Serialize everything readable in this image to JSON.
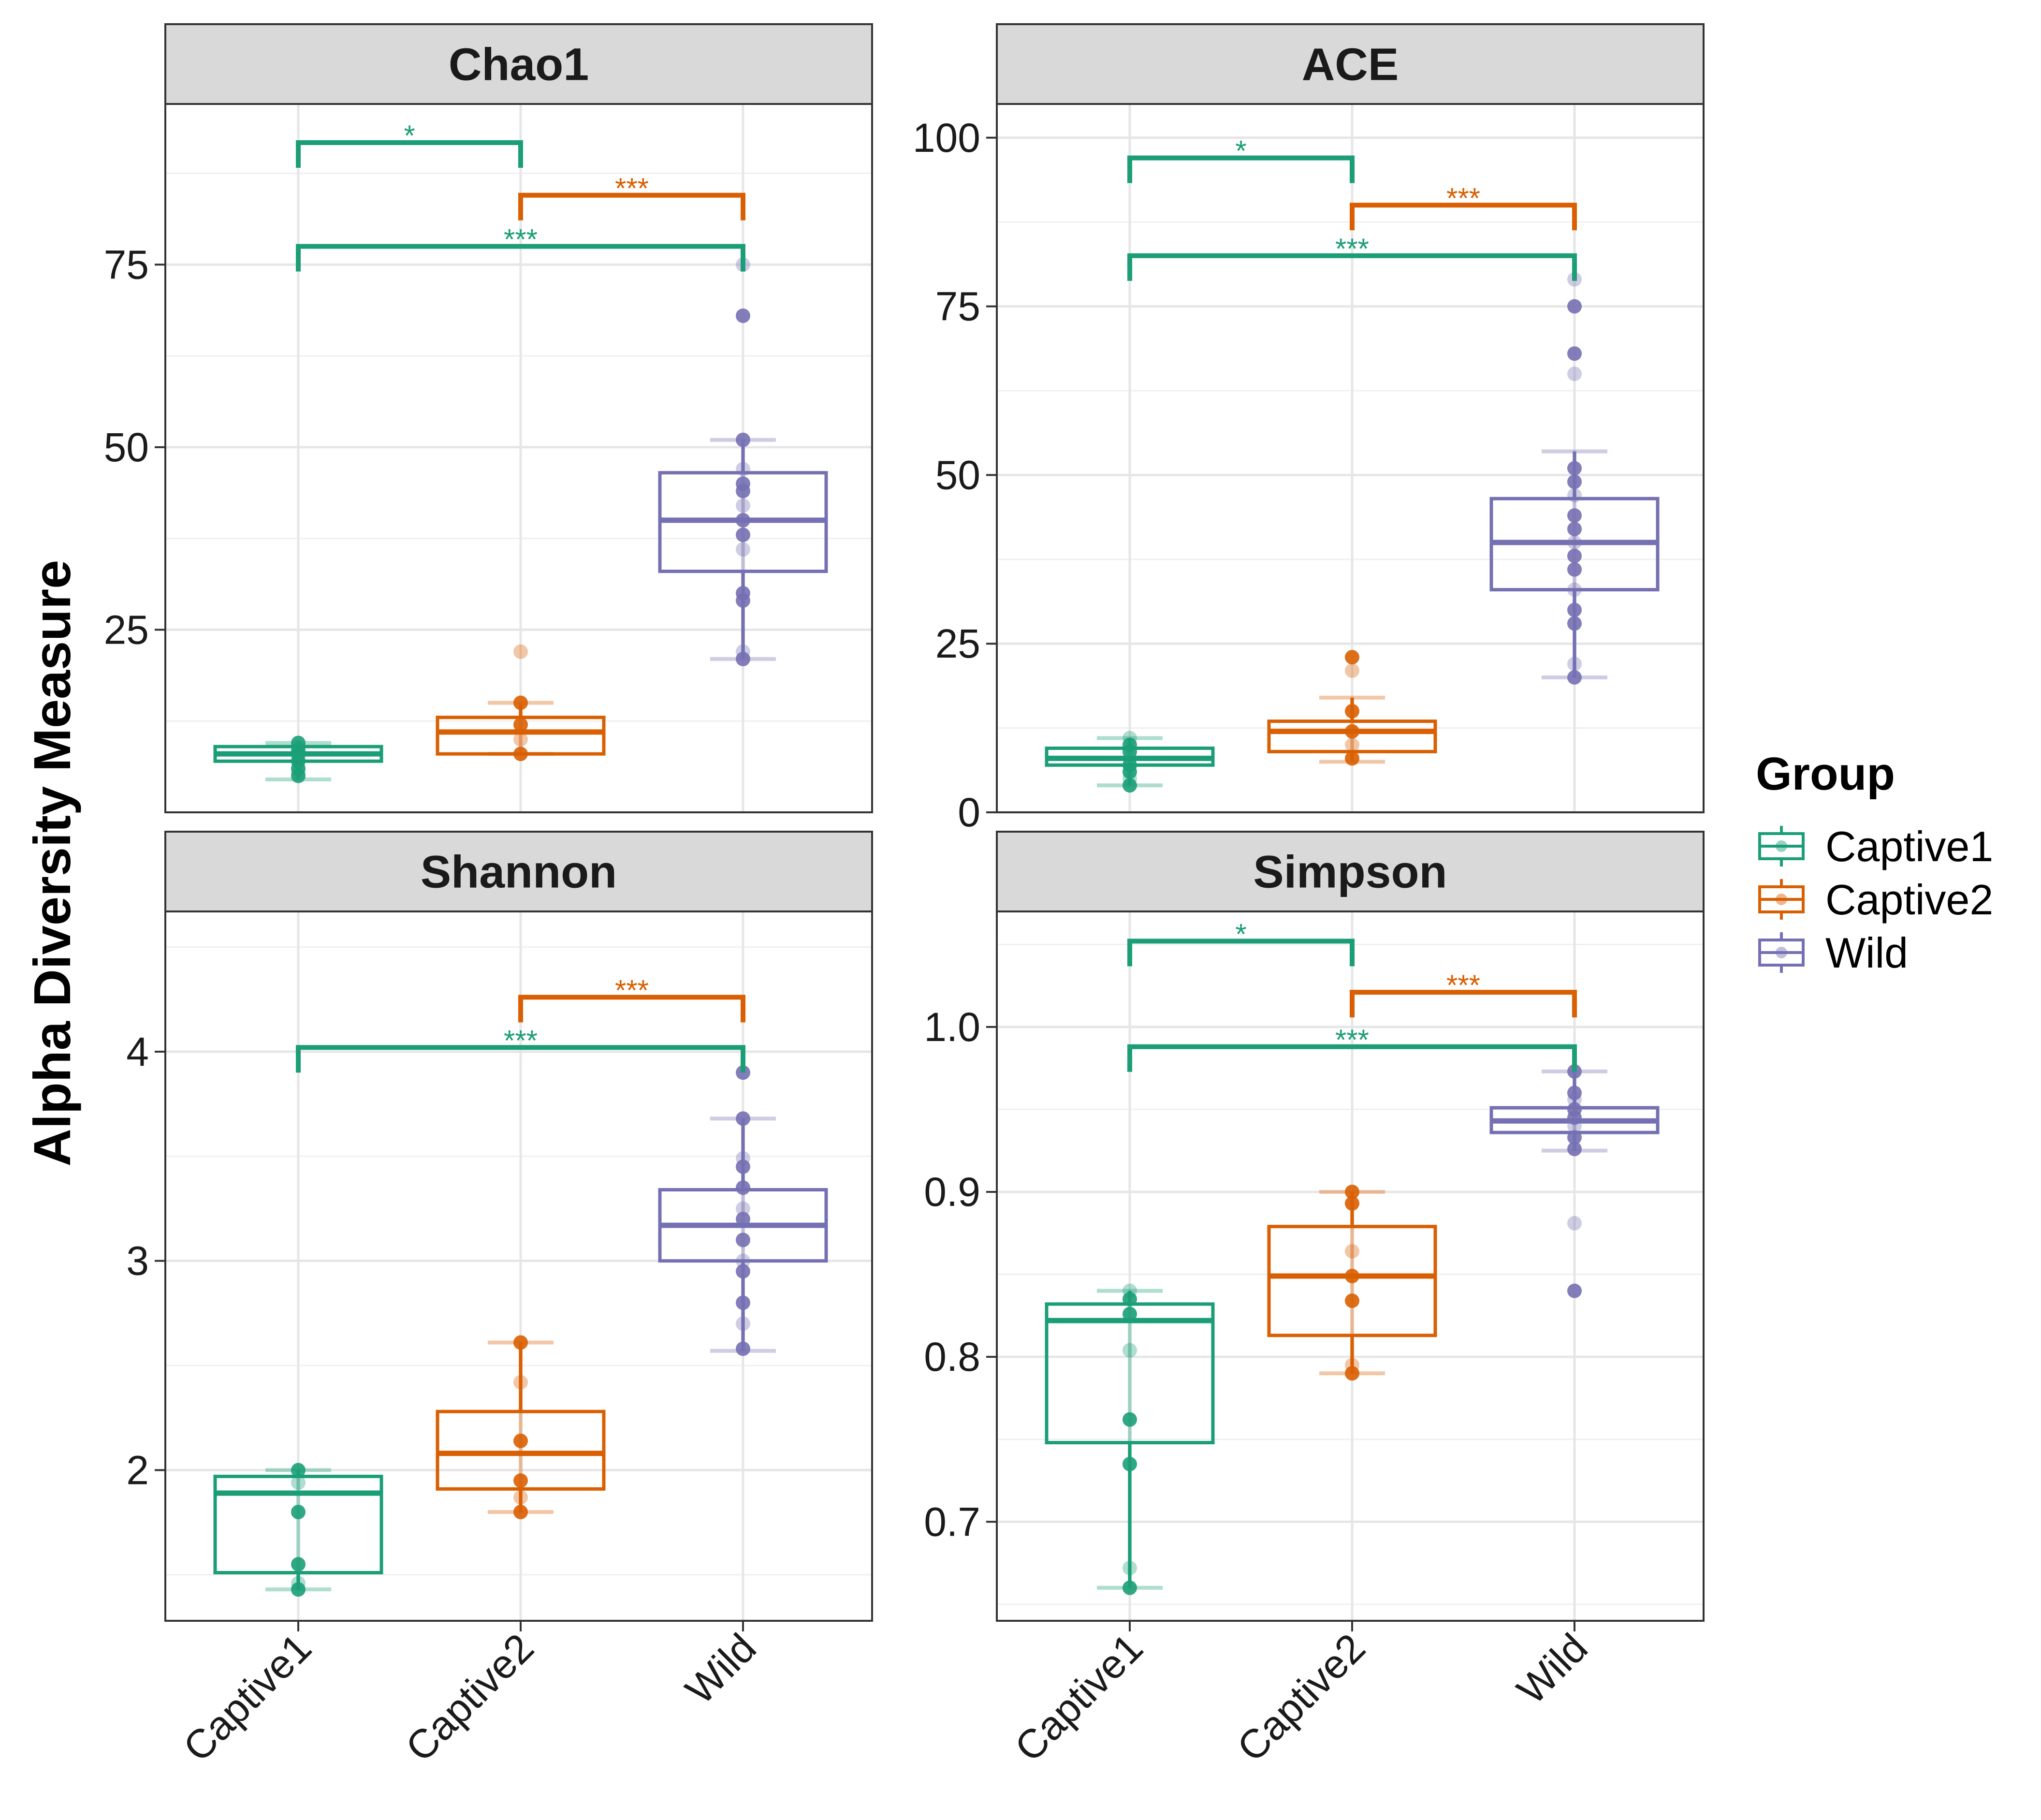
{
  "y_axis_label": "Alpha Diversity Measure",
  "legend": {
    "title": "Group",
    "items": [
      {
        "label": "Captive1",
        "color": "#1b9e77"
      },
      {
        "label": "Captive2",
        "color": "#d95f02"
      },
      {
        "label": "Wild",
        "color": "#7570b3"
      }
    ]
  },
  "chart_data": [
    {
      "type": "box",
      "title": "Chao1",
      "categories": [
        "Captive1",
        "Captive2",
        "Wild"
      ],
      "ylim": [
        0,
        97
      ],
      "yticks": [
        25,
        50,
        75
      ],
      "ytick_labels": [
        "25",
        "50",
        "75"
      ],
      "boxes": [
        {
          "group": "Captive1",
          "q1": 7,
          "median": 8,
          "q3": 9,
          "whisker_low": 4.5,
          "whisker_high": 9.5,
          "points": [
            5,
            5.5,
            6,
            7,
            7.5,
            8,
            8.5,
            9,
            9.5
          ]
        },
        {
          "group": "Captive2",
          "q1": 8,
          "median": 11,
          "q3": 13,
          "whisker_low": 8,
          "whisker_high": 15,
          "points": [
            8,
            10,
            12,
            15,
            22
          ]
        },
        {
          "group": "Wild",
          "q1": 33,
          "median": 40,
          "q3": 46.5,
          "whisker_low": 21,
          "whisker_high": 51,
          "points": [
            21,
            22,
            29,
            30,
            36,
            38,
            40,
            42,
            44,
            45,
            47,
            51,
            68,
            75
          ]
        }
      ],
      "significance": [
        {
          "from": "Captive1",
          "to": "Captive2",
          "label": "*",
          "level": 91.7,
          "color": "#1b9e77"
        },
        {
          "from": "Captive2",
          "to": "Wild",
          "label": "***",
          "level": 84.5,
          "color": "#d95f02"
        },
        {
          "from": "Captive1",
          "to": "Wild",
          "label": "***",
          "level": 77.5,
          "color": "#1b9e77"
        }
      ]
    },
    {
      "type": "box",
      "title": "ACE",
      "categories": [
        "Captive1",
        "Captive2",
        "Wild"
      ],
      "ylim": [
        0,
        105
      ],
      "yticks": [
        0,
        25,
        50,
        75,
        100
      ],
      "ytick_labels": [
        "0",
        "25",
        "50",
        "75",
        "100"
      ],
      "boxes": [
        {
          "group": "Captive1",
          "q1": 7,
          "median": 8,
          "q3": 9.5,
          "whisker_low": 4,
          "whisker_high": 11,
          "points": [
            4,
            5,
            6,
            7,
            8,
            9,
            10,
            11
          ]
        },
        {
          "group": "Captive2",
          "q1": 9,
          "median": 12,
          "q3": 13.5,
          "whisker_low": 7.5,
          "whisker_high": 17,
          "points": [
            8,
            10,
            12,
            15,
            21,
            23
          ]
        },
        {
          "group": "Wild",
          "q1": 33,
          "median": 40,
          "q3": 46.5,
          "whisker_low": 20,
          "whisker_high": 53.5,
          "points": [
            20,
            22,
            28,
            30,
            33,
            36,
            38,
            40,
            42,
            44,
            47,
            49,
            51,
            65,
            68,
            75,
            79
          ]
        }
      ],
      "significance": [
        {
          "from": "Captive1",
          "to": "Captive2",
          "label": "*",
          "level": 97,
          "color": "#1b9e77"
        },
        {
          "from": "Captive2",
          "to": "Wild",
          "label": "***",
          "level": 90,
          "color": "#d95f02"
        },
        {
          "from": "Captive1",
          "to": "Wild",
          "label": "***",
          "level": 82.5,
          "color": "#1b9e77"
        }
      ]
    },
    {
      "type": "box",
      "title": "Shannon",
      "categories": [
        "Captive1",
        "Captive2",
        "Wild"
      ],
      "ylim": [
        1.28,
        4.67
      ],
      "yticks": [
        2,
        3,
        4
      ],
      "ytick_labels": [
        "2",
        "3",
        "4"
      ],
      "boxes": [
        {
          "group": "Captive1",
          "q1": 1.51,
          "median": 1.89,
          "q3": 1.97,
          "whisker_low": 1.43,
          "whisker_high": 2.0,
          "points": [
            1.43,
            1.46,
            1.55,
            1.8,
            1.94,
            2.0
          ]
        },
        {
          "group": "Captive2",
          "q1": 1.91,
          "median": 2.08,
          "q3": 2.28,
          "whisker_low": 1.8,
          "whisker_high": 2.61,
          "points": [
            1.8,
            1.87,
            1.95,
            2.14,
            2.42,
            2.61
          ]
        },
        {
          "group": "Wild",
          "q1": 3.0,
          "median": 3.17,
          "q3": 3.34,
          "whisker_low": 2.57,
          "whisker_high": 3.68,
          "points": [
            2.58,
            2.7,
            2.8,
            2.95,
            3.0,
            3.1,
            3.2,
            3.25,
            3.35,
            3.45,
            3.49,
            3.68,
            3.9
          ]
        }
      ],
      "significance": [
        {
          "from": "Captive2",
          "to": "Wild",
          "label": "***",
          "level": 4.26,
          "color": "#d95f02"
        },
        {
          "from": "Captive1",
          "to": "Wild",
          "label": "***",
          "level": 4.02,
          "color": "#1b9e77"
        }
      ]
    },
    {
      "type": "box",
      "title": "Simpson",
      "categories": [
        "Captive1",
        "Captive2",
        "Wild"
      ],
      "ylim": [
        0.64,
        1.07
      ],
      "yticks": [
        0.7,
        0.8,
        0.9,
        1.0
      ],
      "ytick_labels": [
        "0.7",
        "0.8",
        "0.9",
        "1.0"
      ],
      "boxes": [
        {
          "group": "Captive1",
          "q1": 0.748,
          "median": 0.822,
          "q3": 0.832,
          "whisker_low": 0.66,
          "whisker_high": 0.84,
          "points": [
            0.66,
            0.672,
            0.735,
            0.762,
            0.804,
            0.826,
            0.835,
            0.84
          ]
        },
        {
          "group": "Captive2",
          "q1": 0.813,
          "median": 0.849,
          "q3": 0.879,
          "whisker_low": 0.79,
          "whisker_high": 0.9,
          "points": [
            0.79,
            0.795,
            0.834,
            0.849,
            0.864,
            0.893,
            0.9
          ]
        },
        {
          "group": "Wild",
          "q1": 0.936,
          "median": 0.943,
          "q3": 0.951,
          "whisker_low": 0.925,
          "whisker_high": 0.973,
          "points": [
            0.84,
            0.881,
            0.926,
            0.933,
            0.94,
            0.945,
            0.95,
            0.956,
            0.96,
            0.973
          ]
        }
      ],
      "significance": [
        {
          "from": "Captive1",
          "to": "Captive2",
          "label": "*",
          "level": 1.052,
          "color": "#1b9e77"
        },
        {
          "from": "Captive2",
          "to": "Wild",
          "label": "***",
          "level": 1.021,
          "color": "#d95f02"
        },
        {
          "from": "Captive1",
          "to": "Wild",
          "label": "***",
          "level": 0.988,
          "color": "#1b9e77"
        }
      ]
    }
  ]
}
